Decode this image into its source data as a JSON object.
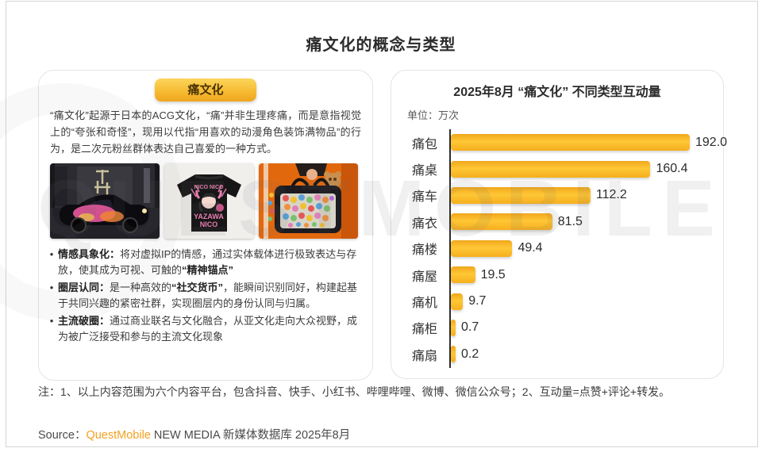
{
  "page": {
    "title": "痛文化的概念与类型",
    "watermark": "QUESTMOBILE",
    "note_line": "注：1、以上内容范围为六个内容平台，包含抖音、快手、小红书、哔哩哔哩、微博、微信公众号；2、互动量=点赞+评论+转发。",
    "source": {
      "label": "Source：",
      "brand": "QuestMobile",
      "rest": " NEW MEDIA 新媒体数据库 2025年8月"
    }
  },
  "colors": {
    "brand_orange": "#F2A01E",
    "badge_gradient_top": "#FCD55C",
    "badge_gradient_bottom": "#EFA51F",
    "bar_gradient_top": "#F0A71D",
    "bar_gradient_mid": "#FFC735",
    "axis_line": "#2e2e2e"
  },
  "concept_panel": {
    "badge_label": "痛文化",
    "intro": "“痛文化”起源于日本的ACG文化，“痛”并非生理疼痛，而是意指视觉上的“夸张和奇怪”，现用以代指“用喜欢的动漫角色装饰满物品”的行为，是二次元粉丝群体表达自己喜爱的一种方式。",
    "photos": [
      "itasha-car-photo",
      "ita-tshirt-photo",
      "ita-bag-photo"
    ],
    "tshirt_print": {
      "top": "NICO NICO",
      "mid": "YAZAWA",
      "bottom": "NICO"
    },
    "bullets": [
      {
        "term": "情感具象化",
        "colon": "：",
        "segments": [
          {
            "text": "将对虚拟IP的情感，通过实体载体进行极致表达与存放，使其成为可视、可触的",
            "bold": false
          },
          {
            "text": "“精神锚点”",
            "bold": true
          }
        ]
      },
      {
        "term": "圈层认同",
        "colon": "：",
        "segments": [
          {
            "text": "是一种高效的",
            "bold": false
          },
          {
            "text": "“社交货币”",
            "bold": true
          },
          {
            "text": "，能瞬间识别同好，构建起基于共同兴趣的紧密社群，实现圈层内的身份认同与归属。",
            "bold": false
          }
        ]
      },
      {
        "term": "主流破圈",
        "colon": "：",
        "segments": [
          {
            "text": "通过商业联名与文化融合，从亚文化走向大众视野，成为被广泛接受和参与的主流文化现象",
            "bold": false
          }
        ]
      }
    ]
  },
  "chart_data": {
    "type": "bar",
    "orientation": "horizontal",
    "title": "2025年8月 “痛文化” 不同类型互动量",
    "unit_label": "单位：万次",
    "categories": [
      "痛包",
      "痛桌",
      "痛车",
      "痛衣",
      "痛楼",
      "痛屋",
      "痛机",
      "痛柜",
      "痛扇"
    ],
    "values": [
      192.0,
      160.4,
      112.2,
      81.5,
      49.4,
      19.5,
      9.7,
      0.7,
      0.2
    ],
    "value_labels": [
      "192.0",
      "160.4",
      "112.2",
      "81.5",
      "49.4",
      "19.5",
      "9.7",
      "0.7",
      "0.2"
    ],
    "xlim": [
      0,
      192
    ],
    "grid": false,
    "legend": false
  }
}
